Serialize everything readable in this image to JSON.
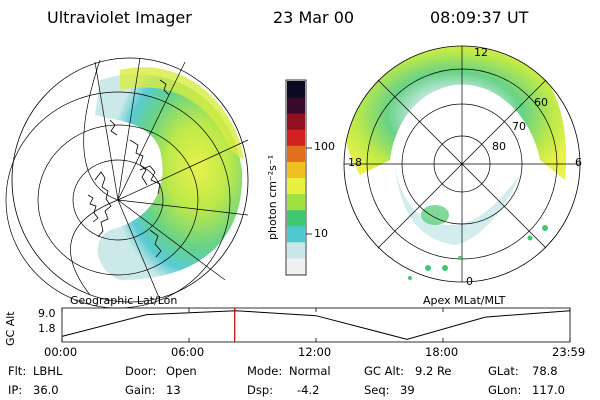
{
  "header": {
    "instrument": "Ultraviolet Imager",
    "date": "23 Mar 00",
    "time": "08:09:37 UT"
  },
  "geo_panel": {
    "caption": "Geographic Lat/Lon"
  },
  "colorbar": {
    "unit_label": "photon cm⁻²s⁻¹",
    "ticks": [
      {
        "value": 100,
        "label": "100"
      },
      {
        "value": 10,
        "label": "10"
      }
    ],
    "scale": "log",
    "colors": [
      "#f0f0f0",
      "#c8e8e8",
      "#50c8d0",
      "#40c870",
      "#a0e040",
      "#e8f040",
      "#f0c020",
      "#e07020",
      "#d02020",
      "#901020",
      "#3a0a2a",
      "#0a0a20"
    ]
  },
  "mlt_panel": {
    "caption": "Apex MLat/MLT",
    "mlt_labels": {
      "top": "12",
      "left": "18",
      "right": "6",
      "bottom": "0"
    },
    "lat_labels": [
      "60",
      "70",
      "80"
    ]
  },
  "altitude_strip": {
    "ylabel": "GC Alt",
    "ytick_top": "9.0",
    "ytick_bottom": "1.8",
    "time_ticks": [
      "00:00",
      "06:00",
      "12:00",
      "18:00",
      "23:59"
    ],
    "current_time_hours": 8.16,
    "cursor_color": "#c00000",
    "orbit_series": [
      {
        "t": 0.0,
        "alt": 1.8
      },
      {
        "t": 4.0,
        "alt": 7.9
      },
      {
        "t": 8.2,
        "alt": 9.0
      },
      {
        "t": 12.0,
        "alt": 7.6
      },
      {
        "t": 16.3,
        "alt": 1.0
      },
      {
        "t": 20.0,
        "alt": 7.2
      },
      {
        "t": 24.0,
        "alt": 9.0
      }
    ]
  },
  "info": {
    "filter_label": "Flt:",
    "filter_value": "LBHL",
    "door_label": "Door:",
    "door_value": "Open",
    "mode_label": "Mode:",
    "mode_value": "Normal",
    "gcalt_label": "GC Alt:",
    "gcalt_value": "9.2 Re",
    "glat_label": "GLat:",
    "glat_value": "78.8",
    "ip_label": "IP:",
    "ip_value": "36.0",
    "gain_label": "Gain:",
    "gain_value": "13",
    "dsp_label": "Dsp:",
    "dsp_value": "-4.2",
    "seq_label": "Seq:",
    "seq_value": "39",
    "glon_label": "GLon:",
    "glon_value": "117.0"
  }
}
